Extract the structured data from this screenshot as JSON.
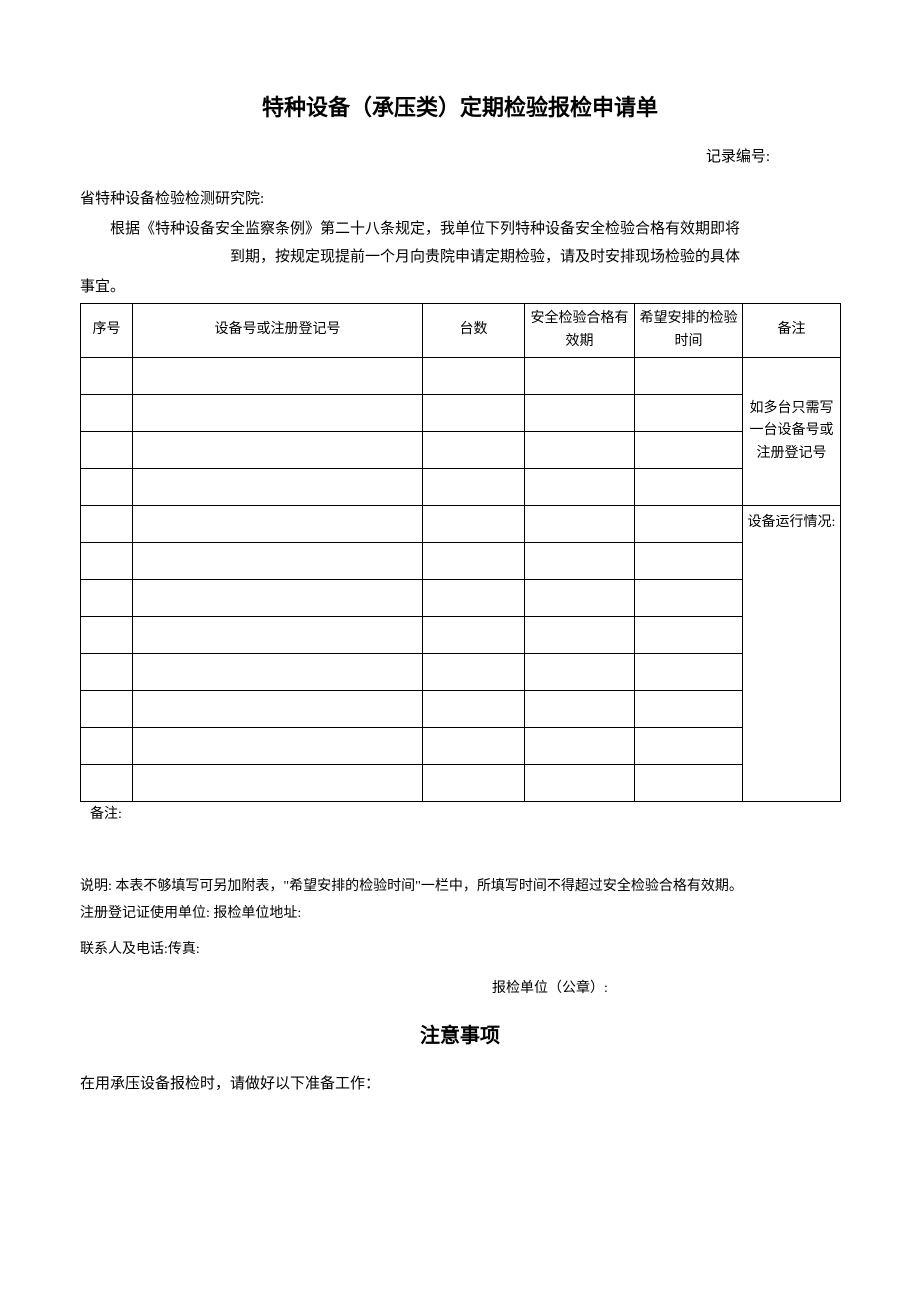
{
  "title": "特种设备（承压类）定期检验报检申请单",
  "record_label": "记录编号:",
  "addressee": "省特种设备检验检测研究院:",
  "intro_line1": "根据《特种设备安全监察条例》第二十八条规定，我单位下列特种设备安全检验合格有效期即将",
  "intro_line2": "到期，按规定现提前一个月向贵院申请定期检验，请及时安排现场检验的具体",
  "intro_line3": "事宜。",
  "table": {
    "columns": {
      "col1": "序号",
      "col2": "设备号或注册登记号",
      "col3": "台数",
      "col4": "安全检验合格有效期",
      "col5": "希望安排的检验时间",
      "col6": "备注"
    },
    "widths": {
      "col1": "52px",
      "col2": "290px",
      "col3": "102px",
      "col4": "110px",
      "col5": "108px",
      "col6": "98px"
    },
    "rows": [
      {
        "c1": "",
        "c2": "",
        "c3": "",
        "c4": "",
        "c5": ""
      },
      {
        "c1": "",
        "c2": "",
        "c3": "",
        "c4": "",
        "c5": ""
      },
      {
        "c1": "",
        "c2": "",
        "c3": "",
        "c4": "",
        "c5": ""
      },
      {
        "c1": "",
        "c2": "",
        "c3": "",
        "c4": "",
        "c5": ""
      },
      {
        "c1": "",
        "c2": "",
        "c3": "",
        "c4": "",
        "c5": ""
      },
      {
        "c1": "",
        "c2": "",
        "c3": "",
        "c4": "",
        "c5": ""
      },
      {
        "c1": "",
        "c2": "",
        "c3": "",
        "c4": "",
        "c5": ""
      },
      {
        "c1": "",
        "c2": "",
        "c3": "",
        "c4": "",
        "c5": ""
      },
      {
        "c1": "",
        "c2": "",
        "c3": "",
        "c4": "",
        "c5": ""
      },
      {
        "c1": "",
        "c2": "",
        "c3": "",
        "c4": "",
        "c5": ""
      },
      {
        "c1": "",
        "c2": "",
        "c3": "",
        "c4": "",
        "c5": ""
      },
      {
        "c1": "",
        "c2": "",
        "c3": "",
        "c4": "",
        "c5": ""
      }
    ],
    "remark_group1": "如多台只需写一台设备号或注册登记号",
    "remark_group2": "设备运行情况:"
  },
  "after_table_note": "备注:",
  "explain": "说明: 本表不够填写可另加附表，\"希望安排的检验时间\"一栏中，所填写时间不得超过安全检验合格有效期。",
  "field_unit": "注册登记证使用单位: 报检单位地址:",
  "field_contact": "联系人及电话:传真:",
  "seal": "报检单位（公章）:",
  "notice_title": "注意事项",
  "notice_intro": "在用承压设备报检时，请做好以下准备工作："
}
